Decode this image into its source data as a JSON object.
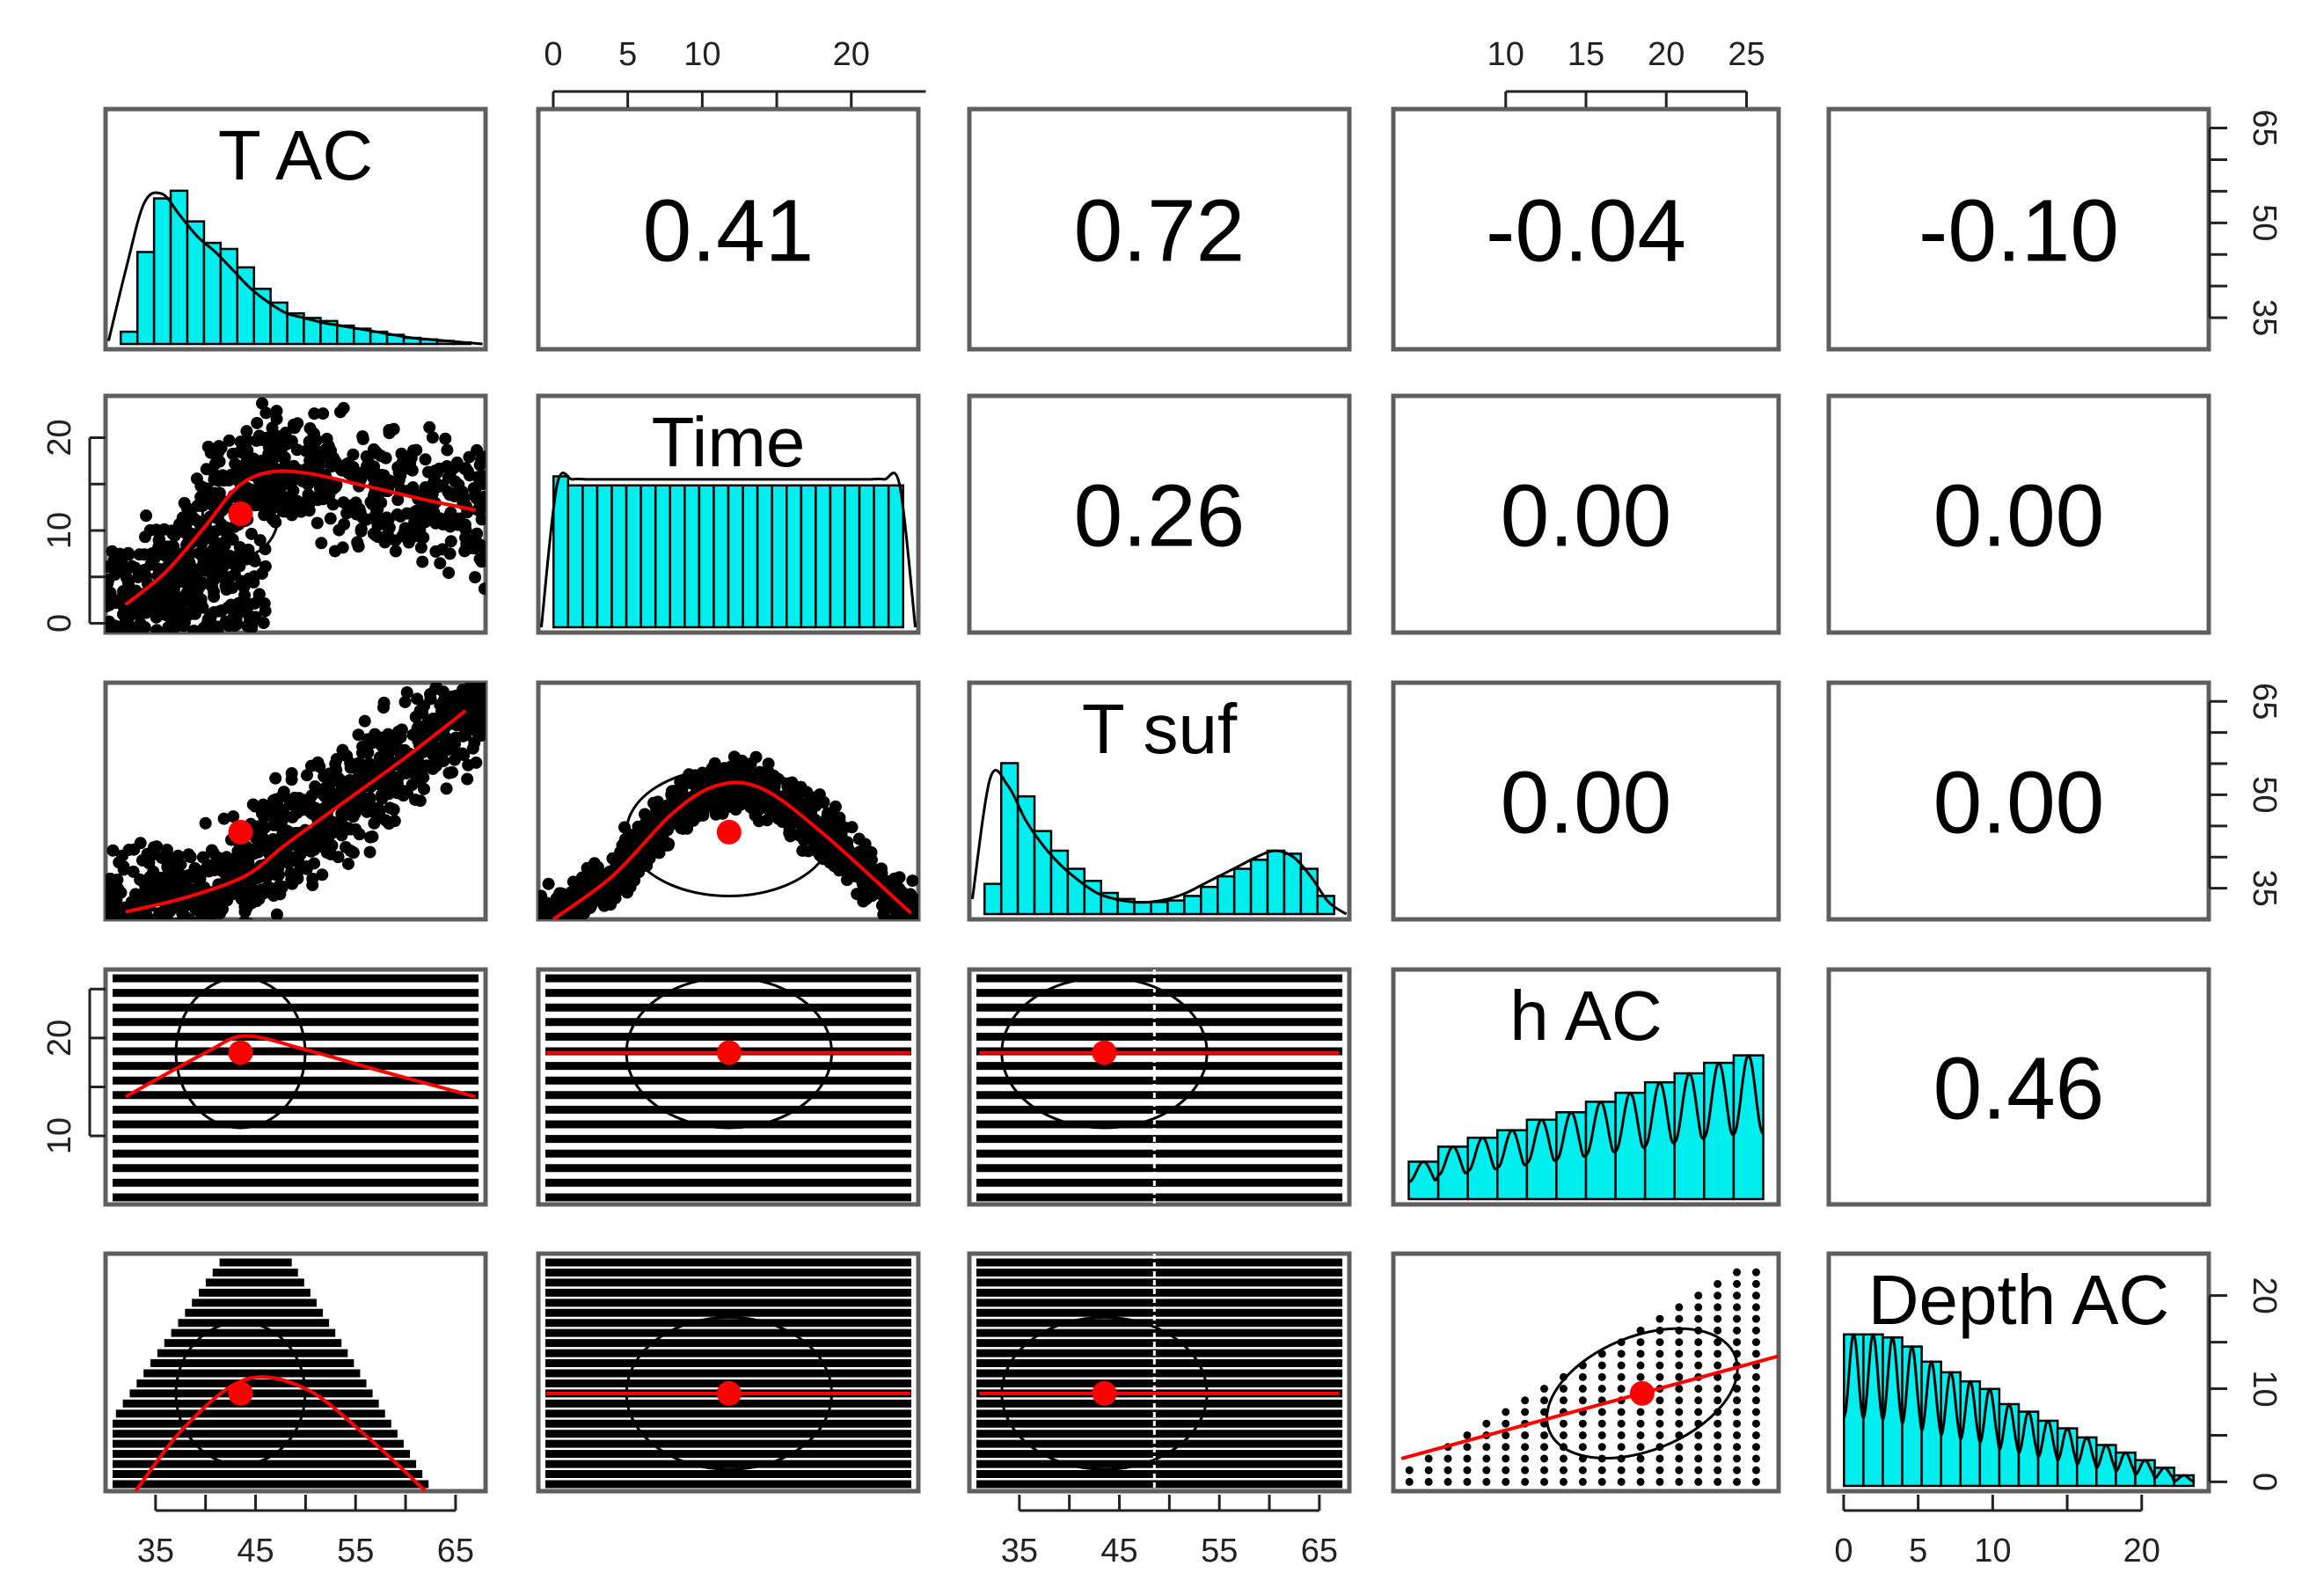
{
  "chart_data": {
    "type": "pairs-panel",
    "variables": [
      {
        "name": "T AC",
        "range": [
          30,
          68
        ],
        "ticks": [
          35,
          45,
          55,
          65
        ],
        "minor_ticks": [
          40,
          50,
          60
        ]
      },
      {
        "name": "Time",
        "range": [
          -1,
          24.5
        ],
        "ticks": [
          0,
          5,
          10,
          20
        ],
        "minor_ticks": [
          15
        ]
      },
      {
        "name": "T suf",
        "range": [
          30,
          68
        ],
        "ticks": [
          35,
          45,
          55,
          65
        ],
        "minor_ticks": [
          40,
          50,
          60
        ]
      },
      {
        "name": "h AC",
        "range": [
          3,
          27
        ],
        "ticks": [
          10,
          15,
          20,
          25
        ],
        "minor_ticks": []
      },
      {
        "name": "Depth AC",
        "range": [
          -1,
          24.5
        ],
        "ticks": [
          0,
          5,
          10,
          20
        ],
        "minor_ticks": [
          15
        ]
      }
    ],
    "correlations": [
      {
        "row": 0,
        "col": 1,
        "value": "0.41"
      },
      {
        "row": 0,
        "col": 2,
        "value": "0.72"
      },
      {
        "row": 0,
        "col": 3,
        "value": "-0.04"
      },
      {
        "row": 0,
        "col": 4,
        "value": "-0.10"
      },
      {
        "row": 1,
        "col": 2,
        "value": "0.26"
      },
      {
        "row": 1,
        "col": 3,
        "value": "0.00"
      },
      {
        "row": 1,
        "col": 4,
        "value": "0.00"
      },
      {
        "row": 2,
        "col": 3,
        "value": "0.00"
      },
      {
        "row": 2,
        "col": 4,
        "value": "0.00"
      },
      {
        "row": 3,
        "col": 4,
        "value": "0.46"
      }
    ],
    "histograms": [
      {
        "var": "T AC",
        "counts": [
          0.08,
          0.6,
          0.95,
          1.0,
          0.8,
          0.66,
          0.62,
          0.5,
          0.36,
          0.27,
          0.2,
          0.17,
          0.15,
          0.12,
          0.1,
          0.08,
          0.06,
          0.04,
          0.03,
          0.02,
          0.01
        ],
        "density": [
          0.02,
          0.5,
          0.92,
          0.98,
          0.84,
          0.7,
          0.6,
          0.48,
          0.36,
          0.27,
          0.2,
          0.17,
          0.14,
          0.12,
          0.1,
          0.08,
          0.06,
          0.04,
          0.03,
          0.02,
          0.01,
          0.0
        ]
      },
      {
        "var": "Time",
        "counts": [
          1.0,
          0.94,
          0.94,
          0.94,
          0.94,
          0.94,
          0.94,
          0.94,
          0.94,
          0.94,
          0.94,
          0.94,
          0.94,
          0.94,
          0.94,
          0.94,
          0.94,
          0.94,
          0.94,
          0.94,
          0.94,
          0.94,
          0.94,
          0.94
        ],
        "density": [
          0.0,
          0.94,
          0.98,
          0.98,
          0.98,
          0.98,
          0.98,
          0.98,
          0.98,
          0.98,
          0.98,
          0.98,
          0.98,
          0.98,
          0.98,
          0.98,
          0.98,
          0.98,
          0.98,
          0.98,
          0.98,
          0.98,
          0.98,
          0.94,
          0.0
        ]
      },
      {
        "var": "T suf",
        "counts": [
          0.2,
          1.0,
          0.78,
          0.55,
          0.42,
          0.3,
          0.22,
          0.14,
          0.1,
          0.08,
          0.08,
          0.09,
          0.12,
          0.18,
          0.25,
          0.3,
          0.36,
          0.42,
          0.4,
          0.3,
          0.12
        ],
        "density": [
          0.1,
          0.9,
          0.85,
          0.62,
          0.45,
          0.32,
          0.22,
          0.14,
          0.1,
          0.08,
          0.08,
          0.1,
          0.14,
          0.2,
          0.26,
          0.32,
          0.38,
          0.42,
          0.38,
          0.25,
          0.08,
          0.0
        ]
      },
      {
        "var": "h AC",
        "counts": [
          0.25,
          0.35,
          0.41,
          0.46,
          0.53,
          0.58,
          0.65,
          0.71,
          0.78,
          0.84,
          0.91,
          0.96
        ],
        "density_oscillating": true
      },
      {
        "var": "Depth AC",
        "counts": [
          1.0,
          1.0,
          0.98,
          0.92,
          0.82,
          0.75,
          0.69,
          0.64,
          0.54,
          0.49,
          0.43,
          0.38,
          0.32,
          0.27,
          0.22,
          0.17,
          0.12,
          0.07
        ],
        "density_oscillating": true
      }
    ],
    "scatter_panels": [
      {
        "row": 1,
        "col": 0,
        "x": "T AC",
        "y": "Time",
        "centroid": [
          43.5,
          11.8
        ],
        "loess": [
          [
            32,
            2.0
          ],
          [
            36,
            5.5
          ],
          [
            40,
            10.5
          ],
          [
            43,
            14.5
          ],
          [
            46,
            16.2
          ],
          [
            50,
            16.2
          ],
          [
            56,
            14.8
          ],
          [
            62,
            13.3
          ],
          [
            67,
            12.2
          ]
        ]
      },
      {
        "row": 2,
        "col": 0,
        "x": "T AC",
        "y": "T suf",
        "centroid": [
          43.5,
          44.0
        ],
        "loess": [
          [
            32,
            31.2
          ],
          [
            38,
            33.5
          ],
          [
            44,
            37.0
          ],
          [
            48,
            42.0
          ],
          [
            54,
            49.0
          ],
          [
            60,
            56.0
          ],
          [
            66,
            63.5
          ]
        ]
      },
      {
        "row": 2,
        "col": 1,
        "x": "Time",
        "y": "T suf",
        "centroid": [
          11.8,
          44.0
        ],
        "loess": [
          [
            0,
            30.0
          ],
          [
            4,
            37.0
          ],
          [
            8,
            47.0
          ],
          [
            11,
            51.5
          ],
          [
            14,
            51.0
          ],
          [
            18,
            44.0
          ],
          [
            24,
            31.0
          ]
        ]
      },
      {
        "row": 3,
        "col": 0,
        "x": "T AC",
        "y": "h AC",
        "centroid": [
          43.5,
          18.5
        ],
        "loess": [
          [
            32,
            14.0
          ],
          [
            40,
            18.5
          ],
          [
            44,
            20.2
          ],
          [
            50,
            18.8
          ],
          [
            58,
            16.5
          ],
          [
            67,
            14.0
          ]
        ]
      },
      {
        "row": 3,
        "col": 1,
        "x": "Time",
        "y": "h AC",
        "centroid": [
          11.8,
          18.5
        ],
        "loess": [
          [
            -0.5,
            18.5
          ],
          [
            24,
            18.5
          ]
        ]
      },
      {
        "row": 3,
        "col": 2,
        "x": "T suf",
        "y": "h AC",
        "centroid": [
          43.5,
          18.5
        ],
        "loess": [
          [
            31,
            18.5
          ],
          [
            67,
            18.5
          ]
        ]
      },
      {
        "row": 4,
        "col": 0,
        "x": "T AC",
        "y": "Depth AC",
        "centroid": [
          43.5,
          9.5
        ],
        "loess": [
          [
            33,
            -1.0
          ],
          [
            38,
            6.0
          ],
          [
            44,
            11.0
          ],
          [
            50,
            10.0
          ],
          [
            56,
            5.0
          ],
          [
            62,
            -1.0
          ]
        ]
      },
      {
        "row": 4,
        "col": 1,
        "x": "Time",
        "y": "Depth AC",
        "centroid": [
          11.8,
          9.5
        ],
        "loess": [
          [
            -0.5,
            9.5
          ],
          [
            24,
            9.5
          ]
        ]
      },
      {
        "row": 4,
        "col": 2,
        "x": "T suf",
        "y": "Depth AC",
        "centroid": [
          43.5,
          9.5
        ],
        "loess": [
          [
            31,
            9.5
          ],
          [
            67,
            9.5
          ]
        ]
      },
      {
        "row": 4,
        "col": 3,
        "x": "h AC",
        "y": "Depth AC",
        "centroid": [
          18.5,
          9.5
        ],
        "loess": [
          [
            3.5,
            2.5
          ],
          [
            27,
            13.5
          ]
        ]
      }
    ]
  }
}
